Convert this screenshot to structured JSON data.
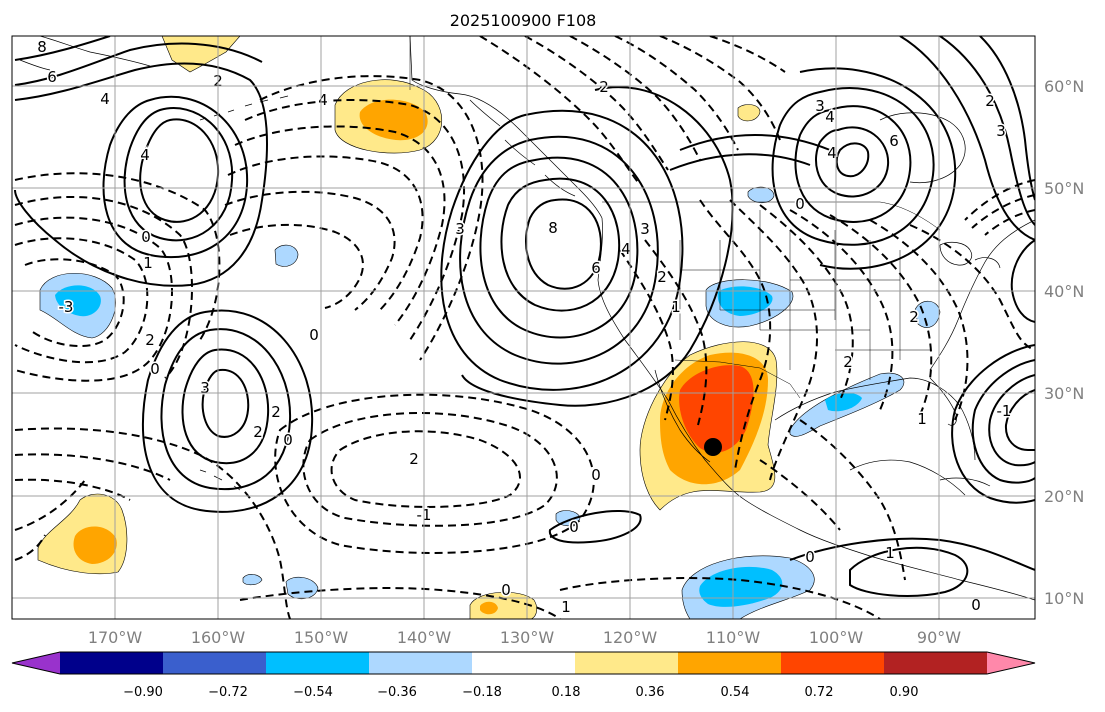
{
  "title": "2025100900 F108",
  "lat_labels": [
    "60°N",
    "50°N",
    "40°N",
    "30°N",
    "20°N",
    "10°N"
  ],
  "lon_labels": [
    "170°W",
    "160°W",
    "150°W",
    "140°W",
    "130°W",
    "120°W",
    "110°W",
    "100°W",
    "90°W"
  ],
  "colorbar": {
    "tick_labels": [
      "−0.90",
      "−0.72",
      "−0.54",
      "−0.36",
      "−0.18",
      "0.18",
      "0.36",
      "0.54",
      "0.72",
      "0.90"
    ],
    "colors": [
      "#9932cc",
      "#00008b",
      "#3a5fcd",
      "#00bfff",
      "#add8ff",
      "#ffffff",
      "#ffe98a",
      "#ffa500",
      "#ff4500",
      "#b22222",
      "#ff88aa"
    ]
  },
  "contour_labels": [
    {
      "text": "8"
    },
    {
      "text": "6"
    },
    {
      "text": "4"
    },
    {
      "text": "2"
    },
    {
      "text": "4"
    },
    {
      "text": "0"
    },
    {
      "text": "1"
    },
    {
      "text": "-3"
    },
    {
      "text": "2"
    },
    {
      "text": "0"
    },
    {
      "text": "3"
    },
    {
      "text": "2"
    },
    {
      "text": "2"
    },
    {
      "text": "0"
    },
    {
      "text": "0"
    },
    {
      "text": "2"
    },
    {
      "text": "-1"
    },
    {
      "text": "8"
    },
    {
      "text": "6"
    },
    {
      "text": "4"
    },
    {
      "text": "3"
    },
    {
      "text": "2"
    },
    {
      "text": "1"
    },
    {
      "text": "0"
    },
    {
      "text": "2"
    },
    {
      "text": "3"
    },
    {
      "text": "4"
    },
    {
      "text": "4"
    },
    {
      "text": "6"
    },
    {
      "text": "0"
    },
    {
      "text": "3"
    },
    {
      "text": "2"
    },
    {
      "text": "0"
    },
    {
      "text": "1"
    },
    {
      "text": "0"
    },
    {
      "text": "1"
    },
    {
      "text": "0"
    },
    {
      "text": "-1"
    },
    {
      "text": "0"
    },
    {
      "text": "2"
    },
    {
      "text": "1"
    },
    {
      "text": "2"
    },
    {
      "text": "3"
    },
    {
      "text": "4"
    }
  ]
}
